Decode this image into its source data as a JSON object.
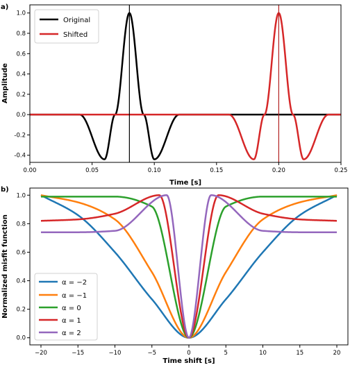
{
  "chart_data": [
    {
      "panel_label": "a)",
      "type": "line",
      "xlabel": "Time [s]",
      "ylabel": "Amplitude",
      "xlim": [
        0.0,
        0.25
      ],
      "ylim": [
        -0.47,
        1.08
      ],
      "xticks": [
        "0.00",
        "0.05",
        "0.10",
        "0.15",
        "0.20",
        "0.25"
      ],
      "xtick_values": [
        0.0,
        0.05,
        0.1,
        0.15,
        0.2,
        0.25
      ],
      "yticks": [
        "-0.4",
        "-0.2",
        "0.0",
        "0.2",
        "0.4",
        "0.6",
        "0.8",
        "1.0"
      ],
      "ytick_values": [
        -0.4,
        -0.2,
        0.0,
        0.2,
        0.4,
        0.6,
        0.8,
        1.0
      ],
      "legend_position": "top-left",
      "series": [
        {
          "name": "Original",
          "color": "#000000",
          "center": 0.08,
          "peak": 1.0,
          "troughs": [
            [
              0.06,
              -0.44
            ],
            [
              0.1,
              -0.44
            ]
          ]
        },
        {
          "name": "Shifted",
          "color": "#d62728",
          "center": 0.2,
          "peak": 1.0,
          "troughs": [
            [
              0.18,
              -0.44
            ],
            [
              0.22,
              -0.44
            ]
          ]
        }
      ],
      "vlines": [
        {
          "x": 0.08,
          "color": "#000000"
        },
        {
          "x": 0.2,
          "color": "#b22222"
        }
      ]
    },
    {
      "panel_label": "b)",
      "type": "line",
      "xlabel": "Time shift [s]",
      "ylabel": "Normalized misfit function",
      "xlim": [
        -21.5,
        21.5
      ],
      "ylim": [
        -0.05,
        1.05
      ],
      "xticks": [
        "−20",
        "−15",
        "−10",
        "−5",
        "0",
        "5",
        "10",
        "15",
        "20"
      ],
      "xtick_values": [
        -20,
        -15,
        -10,
        -5,
        0,
        5,
        10,
        15,
        20
      ],
      "yticks": [
        "0.0",
        "0.2",
        "0.4",
        "0.6",
        "0.8",
        "1.0"
      ],
      "ytick_values": [
        0.0,
        0.2,
        0.4,
        0.6,
        0.8,
        1.0
      ],
      "legend_position": "bottom-left",
      "series": [
        {
          "name": "α = −2",
          "color": "#1f77b4",
          "x": [
            -20,
            -15,
            -10,
            -5,
            0,
            5,
            10,
            15,
            20
          ],
          "y": [
            1.0,
            0.86,
            0.6,
            0.27,
            0.0,
            0.27,
            0.6,
            0.86,
            1.0
          ]
        },
        {
          "name": "α = −1",
          "color": "#ff7f0e",
          "x": [
            -20,
            -15,
            -10,
            -5,
            0,
            5,
            10,
            15,
            20
          ],
          "y": [
            1.0,
            0.95,
            0.83,
            0.46,
            0.0,
            0.46,
            0.83,
            0.95,
            1.0
          ]
        },
        {
          "name": "α = 0",
          "color": "#2ca02c",
          "x": [
            -20,
            -15,
            -10,
            -5,
            0,
            5,
            10,
            15,
            20
          ],
          "y": [
            0.99,
            0.99,
            0.99,
            0.92,
            0.0,
            0.92,
            0.99,
            0.99,
            0.99
          ]
        },
        {
          "name": "α = 1",
          "color": "#d62728",
          "x": [
            -20,
            -15,
            -10,
            -4,
            0,
            4,
            10,
            15,
            20
          ],
          "y": [
            0.82,
            0.83,
            0.87,
            1.0,
            0.0,
            1.0,
            0.87,
            0.83,
            0.82
          ]
        },
        {
          "name": "α = 2",
          "color": "#9467bd",
          "x": [
            -20,
            -15,
            -10,
            -3,
            0,
            3,
            10,
            15,
            20
          ],
          "y": [
            0.74,
            0.74,
            0.75,
            1.0,
            0.0,
            1.0,
            0.75,
            0.74,
            0.74
          ]
        }
      ]
    }
  ]
}
